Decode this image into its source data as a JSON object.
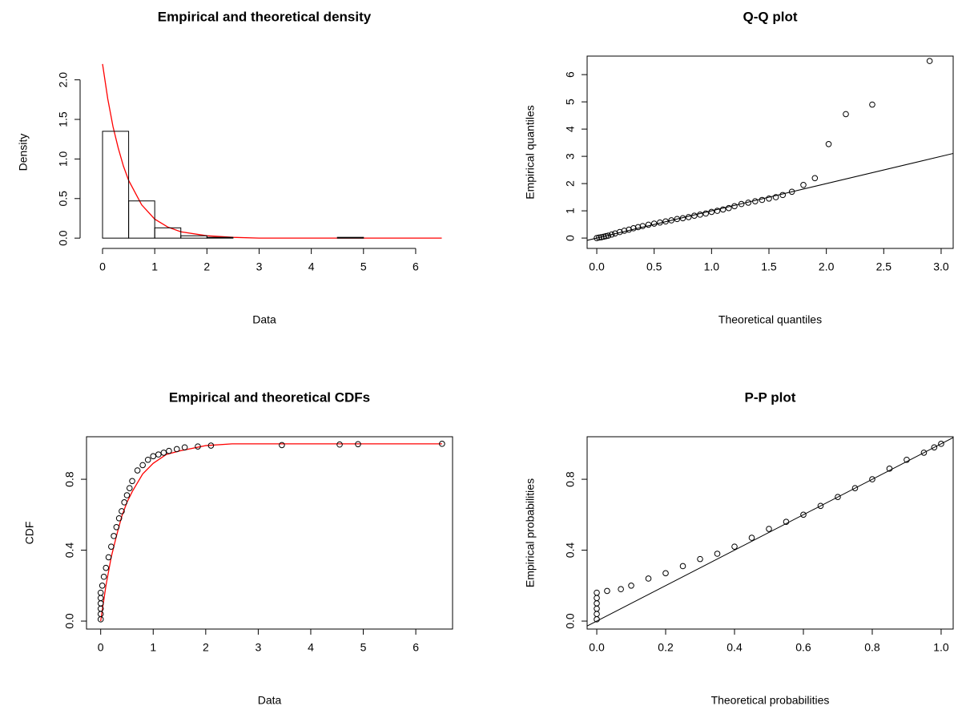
{
  "chart_data": [
    {
      "type": "histogram",
      "title": "Empirical and theoretical density",
      "xlabel": "Data",
      "ylabel": "Density",
      "xlim": [
        -0.43,
        6.63
      ],
      "ylim": [
        -0.13,
        2.3
      ],
      "box": false,
      "xticks": [
        0,
        1,
        2,
        3,
        4,
        5,
        6
      ],
      "yticks": [
        {
          "value": 0,
          "label": "0.0"
        },
        0.5,
        {
          "value": 1,
          "label": "1.0"
        },
        1.5,
        {
          "value": 2,
          "label": "2.0"
        }
      ],
      "bins": [
        0,
        0.5,
        1,
        1.5,
        2,
        2.5,
        3,
        3.5,
        4,
        4.5,
        5,
        5.5,
        6,
        6.5
      ],
      "values": [
        1.35,
        0.47,
        0.13,
        0.03,
        0.01,
        0,
        0,
        0,
        0,
        0.01,
        0,
        0,
        0
      ],
      "color": "#000000",
      "line": {
        "color": "#ff0000",
        "x": [
          0,
          0.1,
          0.2,
          0.3,
          0.4,
          0.5,
          0.75,
          1,
          1.25,
          1.5,
          2,
          2.5,
          3,
          4,
          5,
          6.5
        ],
        "values": [
          2.2,
          1.76,
          1.41,
          1.14,
          0.91,
          0.73,
          0.42,
          0.24,
          0.14,
          0.08,
          0.03,
          0.01,
          0,
          0,
          0,
          0
        ]
      }
    },
    {
      "type": "scatter",
      "title": "Q-Q plot",
      "xlabel": "Theoretical quantiles",
      "ylabel": "Empirical quantiles",
      "xlim": [
        -0.084,
        3.105
      ],
      "ylim": [
        -0.38,
        6.68
      ],
      "box": true,
      "diagonal": true,
      "xticks": [
        {
          "value": 0,
          "label": "0.0"
        },
        0.5,
        {
          "value": 1,
          "label": "1.0"
        },
        1.5,
        {
          "value": 2,
          "label": "2.0"
        },
        2.5,
        {
          "value": 3,
          "label": "3.0"
        }
      ],
      "yticks": [
        0,
        1,
        2,
        3,
        4,
        5,
        6
      ],
      "points": {
        "color": "#000000",
        "x": [
          0,
          0.02,
          0.04,
          0.06,
          0.08,
          0.1,
          0.13,
          0.16,
          0.2,
          0.24,
          0.28,
          0.32,
          0.36,
          0.4,
          0.45,
          0.5,
          0.55,
          0.6,
          0.65,
          0.7,
          0.75,
          0.8,
          0.85,
          0.9,
          0.95,
          1.0,
          1.05,
          1.1,
          1.15,
          1.2,
          1.26,
          1.32,
          1.38,
          1.44,
          1.5,
          1.56,
          1.62,
          1.7,
          1.8,
          1.9,
          2.02,
          2.17,
          2.4,
          2.9
        ],
        "values": [
          0,
          0.02,
          0.03,
          0.05,
          0.07,
          0.09,
          0.13,
          0.17,
          0.22,
          0.27,
          0.31,
          0.36,
          0.4,
          0.44,
          0.49,
          0.53,
          0.57,
          0.61,
          0.65,
          0.7,
          0.73,
          0.77,
          0.82,
          0.86,
          0.9,
          0.96,
          1.0,
          1.05,
          1.1,
          1.17,
          1.25,
          1.3,
          1.35,
          1.4,
          1.45,
          1.5,
          1.58,
          1.7,
          1.95,
          2.2,
          3.45,
          4.55,
          4.9,
          6.5
        ]
      }
    },
    {
      "type": "scatter",
      "title": "Empirical and theoretical CDFs",
      "xlabel": "Data",
      "ylabel": "CDF",
      "xlim": [
        -0.27,
        6.7
      ],
      "ylim": [
        -0.045,
        1.04
      ],
      "box": true,
      "xticks": [
        0,
        1,
        2,
        3,
        4,
        5,
        6
      ],
      "yticks": [
        {
          "value": 0,
          "label": "0.0"
        },
        0.4,
        0.8
      ],
      "points": {
        "color": "#000000",
        "x": [
          0,
          0,
          0,
          0,
          0,
          0,
          0.03,
          0.06,
          0.1,
          0.15,
          0.2,
          0.25,
          0.3,
          0.35,
          0.4,
          0.45,
          0.5,
          0.55,
          0.6,
          0.7,
          0.8,
          0.9,
          1.0,
          1.1,
          1.2,
          1.3,
          1.45,
          1.6,
          1.85,
          2.1,
          3.45,
          4.55,
          4.9,
          6.5
        ],
        "values": [
          0.01,
          0.04,
          0.07,
          0.1,
          0.13,
          0.16,
          0.2,
          0.25,
          0.3,
          0.36,
          0.42,
          0.48,
          0.53,
          0.58,
          0.62,
          0.67,
          0.71,
          0.75,
          0.79,
          0.85,
          0.88,
          0.91,
          0.93,
          0.94,
          0.95,
          0.96,
          0.97,
          0.98,
          0.985,
          0.99,
          0.993,
          0.996,
          0.998,
          1.0
        ]
      },
      "line": {
        "color": "#ff0000",
        "x": [
          0,
          0.1,
          0.2,
          0.3,
          0.4,
          0.5,
          0.6,
          0.8,
          1,
          1.25,
          1.5,
          2,
          2.5,
          3,
          6.5
        ],
        "values": [
          0,
          0.2,
          0.36,
          0.48,
          0.59,
          0.67,
          0.73,
          0.83,
          0.89,
          0.94,
          0.96,
          0.99,
          1,
          1,
          1
        ]
      }
    },
    {
      "type": "scatter",
      "title": "P-P plot",
      "xlabel": "Theoretical probabilities",
      "ylabel": "Empirical probabilities",
      "xlim": [
        -0.028,
        1.035
      ],
      "ylim": [
        -0.045,
        1.04
      ],
      "box": true,
      "diagonal": true,
      "xticks": [
        {
          "value": 0,
          "label": "0.0"
        },
        0.2,
        0.4,
        0.6,
        0.8,
        {
          "value": 1,
          "label": "1.0"
        }
      ],
      "yticks": [
        {
          "value": 0,
          "label": "0.0"
        },
        0.4,
        0.8
      ],
      "points": {
        "color": "#000000",
        "x": [
          0,
          0,
          0,
          0,
          0,
          0,
          0.03,
          0.07,
          0.1,
          0.15,
          0.2,
          0.25,
          0.3,
          0.35,
          0.4,
          0.45,
          0.5,
          0.55,
          0.6,
          0.65,
          0.7,
          0.75,
          0.8,
          0.85,
          0.9,
          0.95,
          0.98,
          1.0
        ],
        "values": [
          0.01,
          0.04,
          0.07,
          0.1,
          0.13,
          0.16,
          0.17,
          0.18,
          0.2,
          0.24,
          0.27,
          0.31,
          0.35,
          0.38,
          0.42,
          0.47,
          0.52,
          0.56,
          0.6,
          0.65,
          0.7,
          0.75,
          0.8,
          0.86,
          0.91,
          0.95,
          0.98,
          1.0
        ]
      }
    }
  ]
}
